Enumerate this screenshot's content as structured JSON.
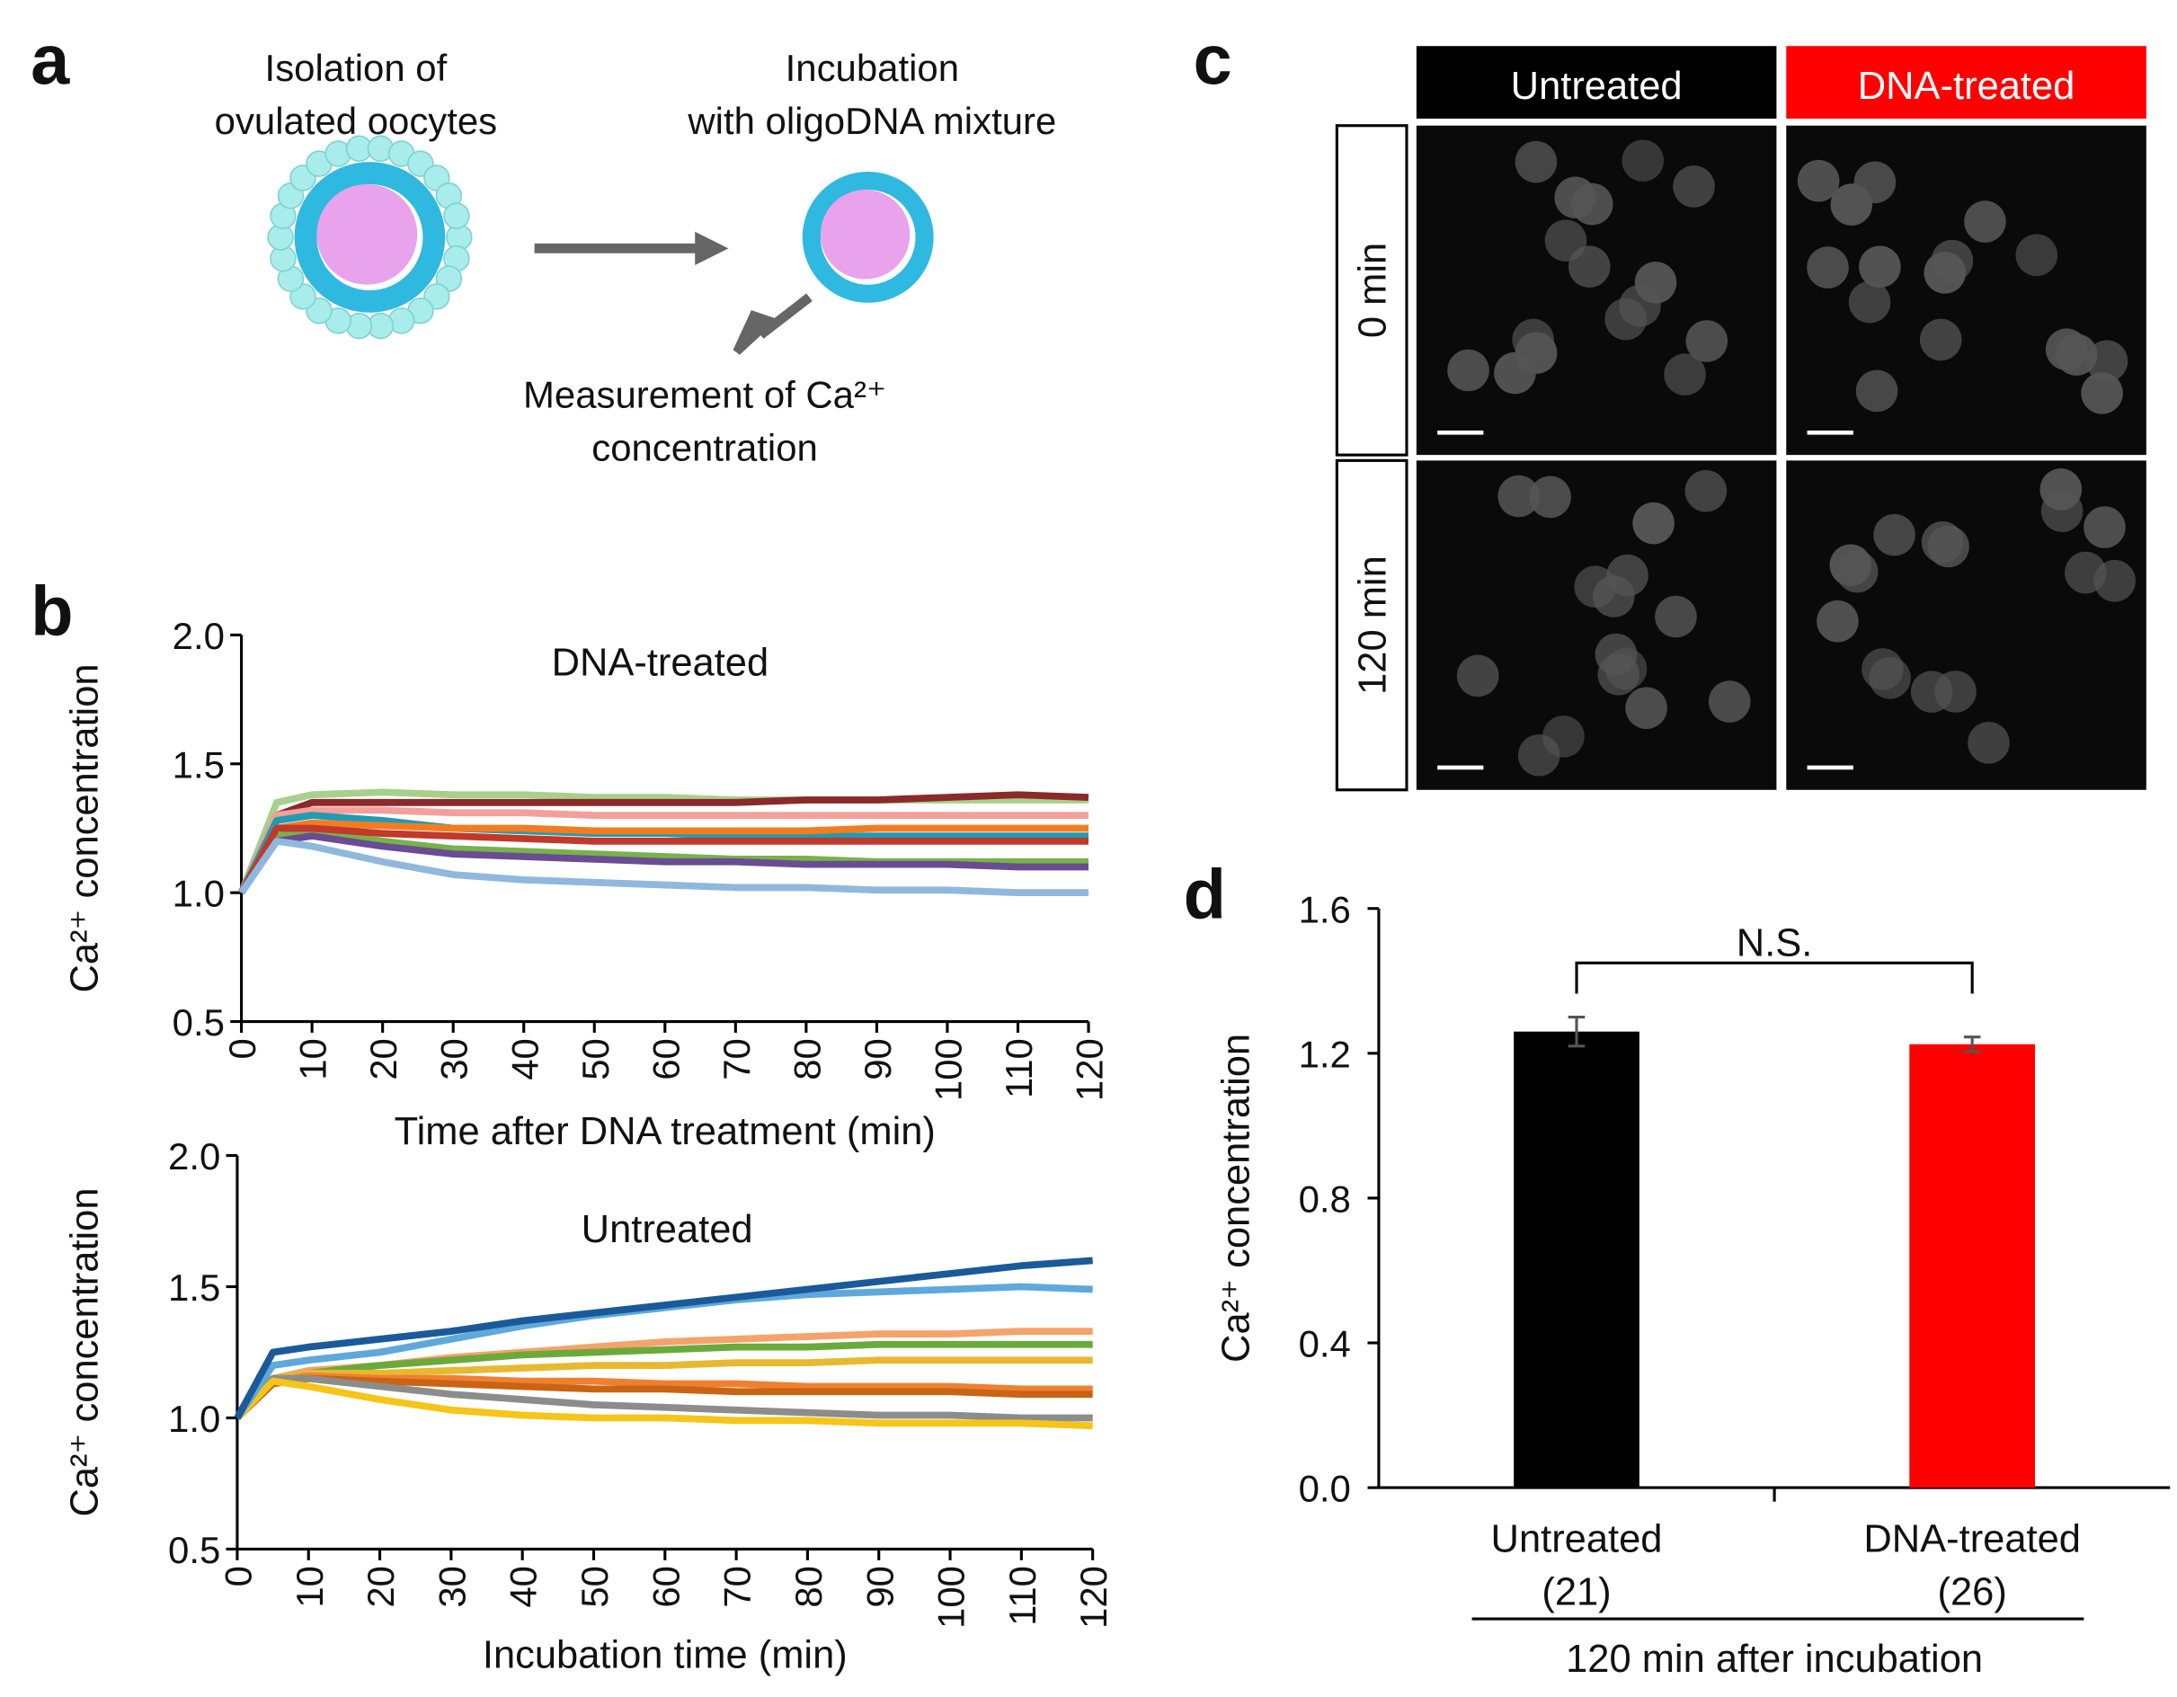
{
  "panels": {
    "a": "a",
    "b": "b",
    "c": "c",
    "d": "d"
  },
  "diagram": {
    "step1": [
      "Isolation of",
      "ovulated oocytes"
    ],
    "step2": [
      "Incubation",
      "with oligoDNA mixture"
    ],
    "step3": [
      "Measurement of Ca²⁺",
      "concentration"
    ]
  },
  "images": {
    "columns": [
      "Untreated",
      "DNA-treated"
    ],
    "rows": [
      "0 min",
      "120 min"
    ]
  },
  "chart_data": [
    {
      "type": "line",
      "title": "DNA-treated",
      "x_label": "Time after DNA treatment (min)",
      "y_label": "Ca²⁺ concentration",
      "x": [
        0,
        5,
        10,
        20,
        30,
        40,
        50,
        60,
        70,
        80,
        90,
        100,
        110,
        120
      ],
      "xlim": [
        0,
        120
      ],
      "xticks": [
        0,
        10,
        20,
        30,
        40,
        50,
        60,
        70,
        80,
        90,
        100,
        110,
        120
      ],
      "ylim": [
        0.5,
        2.0
      ],
      "yticks": [
        0.5,
        {
          "value": 1.0,
          "label": "1.0"
        },
        1.5,
        {
          "value": 2.0,
          "label": "2.0"
        }
      ],
      "series": [
        {
          "color": "#a8d08d",
          "values": [
            1.0,
            1.35,
            1.38,
            1.39,
            1.38,
            1.38,
            1.37,
            1.37,
            1.36,
            1.36,
            1.36,
            1.36,
            1.36,
            1.36
          ]
        },
        {
          "color": "#8b2a2a",
          "values": [
            1.0,
            1.3,
            1.35,
            1.35,
            1.35,
            1.35,
            1.35,
            1.35,
            1.35,
            1.36,
            1.36,
            1.37,
            1.38,
            1.37
          ]
        },
        {
          "color": "#f4a09a",
          "values": [
            1.0,
            1.3,
            1.32,
            1.32,
            1.31,
            1.31,
            1.3,
            1.3,
            1.3,
            1.3,
            1.3,
            1.3,
            1.3,
            1.3
          ]
        },
        {
          "color": "#1f9bb5",
          "values": [
            1.0,
            1.28,
            1.3,
            1.28,
            1.25,
            1.24,
            1.23,
            1.23,
            1.22,
            1.22,
            1.22,
            1.22,
            1.22,
            1.22
          ]
        },
        {
          "color": "#f47c20",
          "values": [
            1.0,
            1.25,
            1.27,
            1.26,
            1.25,
            1.25,
            1.24,
            1.24,
            1.24,
            1.24,
            1.25,
            1.25,
            1.25,
            1.25
          ]
        },
        {
          "color": "#77b24a",
          "values": [
            1.0,
            1.22,
            1.24,
            1.2,
            1.17,
            1.16,
            1.15,
            1.14,
            1.13,
            1.13,
            1.12,
            1.12,
            1.12,
            1.12
          ]
        },
        {
          "color": "#c0392b",
          "values": [
            1.0,
            1.25,
            1.25,
            1.23,
            1.22,
            1.21,
            1.2,
            1.2,
            1.2,
            1.2,
            1.2,
            1.2,
            1.2,
            1.2
          ]
        },
        {
          "color": "#6a4c93",
          "values": [
            1.0,
            1.2,
            1.22,
            1.18,
            1.15,
            1.14,
            1.13,
            1.12,
            1.12,
            1.11,
            1.11,
            1.11,
            1.1,
            1.1
          ]
        },
        {
          "color": "#8fb8de",
          "values": [
            1.0,
            1.2,
            1.18,
            1.12,
            1.07,
            1.05,
            1.04,
            1.03,
            1.02,
            1.02,
            1.01,
            1.01,
            1.0,
            1.0
          ]
        }
      ]
    },
    {
      "type": "line",
      "title": "Untreated",
      "x_label": "Incubation time (min)",
      "y_label": "Ca²⁺ concentration",
      "x": [
        0,
        5,
        10,
        20,
        30,
        40,
        50,
        60,
        70,
        80,
        90,
        100,
        110,
        120
      ],
      "xlim": [
        0,
        120
      ],
      "xticks": [
        0,
        10,
        20,
        30,
        40,
        50,
        60,
        70,
        80,
        90,
        100,
        110,
        120
      ],
      "ylim": [
        0.5,
        2.0
      ],
      "yticks": [
        0.5,
        {
          "value": 1.0,
          "label": "1.0"
        },
        1.5,
        {
          "value": 2.0,
          "label": "2.0"
        }
      ],
      "series": [
        {
          "color": "#f6a26b",
          "values": [
            1.0,
            1.15,
            1.18,
            1.2,
            1.23,
            1.25,
            1.27,
            1.29,
            1.3,
            1.31,
            1.32,
            1.32,
            1.33,
            1.33
          ]
        },
        {
          "color": "#6aaa3a",
          "values": [
            1.0,
            1.15,
            1.17,
            1.2,
            1.22,
            1.24,
            1.25,
            1.26,
            1.27,
            1.27,
            1.28,
            1.28,
            1.28,
            1.28
          ]
        },
        {
          "color": "#e8b830",
          "values": [
            1.0,
            1.15,
            1.17,
            1.17,
            1.18,
            1.19,
            1.2,
            1.2,
            1.21,
            1.21,
            1.22,
            1.22,
            1.22,
            1.22
          ]
        },
        {
          "color": "#f08030",
          "values": [
            1.0,
            1.14,
            1.16,
            1.15,
            1.15,
            1.14,
            1.14,
            1.13,
            1.13,
            1.12,
            1.12,
            1.12,
            1.11,
            1.11
          ]
        },
        {
          "color": "#c86414",
          "values": [
            1.0,
            1.13,
            1.15,
            1.14,
            1.13,
            1.12,
            1.11,
            1.11,
            1.1,
            1.1,
            1.1,
            1.1,
            1.09,
            1.09
          ]
        },
        {
          "color": "#8c8c8c",
          "values": [
            1.0,
            1.15,
            1.15,
            1.12,
            1.09,
            1.07,
            1.05,
            1.04,
            1.03,
            1.02,
            1.01,
            1.01,
            1.0,
            1.0
          ]
        },
        {
          "color": "#f5c518",
          "values": [
            1.0,
            1.14,
            1.12,
            1.07,
            1.03,
            1.01,
            1.0,
            1.0,
            0.99,
            0.99,
            0.98,
            0.98,
            0.98,
            0.97
          ]
        },
        {
          "color": "#5fa8dc",
          "values": [
            1.0,
            1.2,
            1.22,
            1.25,
            1.3,
            1.35,
            1.39,
            1.42,
            1.45,
            1.47,
            1.48,
            1.49,
            1.5,
            1.49
          ]
        },
        {
          "color": "#1a5a9a",
          "values": [
            1.0,
            1.25,
            1.27,
            1.3,
            1.33,
            1.37,
            1.4,
            1.43,
            1.46,
            1.49,
            1.52,
            1.55,
            1.58,
            1.6
          ]
        }
      ]
    },
    {
      "type": "bar",
      "y_label": "Ca²⁺ concentration",
      "categories": [
        "Untreated",
        "DNA-treated"
      ],
      "n_labels": [
        "(21)",
        "(26)"
      ],
      "group_label": "120 min after incubation",
      "annotation": "N.S.",
      "values": [
        1.26,
        1.225
      ],
      "errors": [
        0.04,
        0.02
      ],
      "colors": [
        "#000000",
        "#ff0000"
      ],
      "ylim": [
        0,
        1.6
      ],
      "yticks": [
        {
          "value": 0,
          "label": "0.0"
        },
        0.4,
        0.8,
        1.2,
        1.6
      ]
    }
  ]
}
